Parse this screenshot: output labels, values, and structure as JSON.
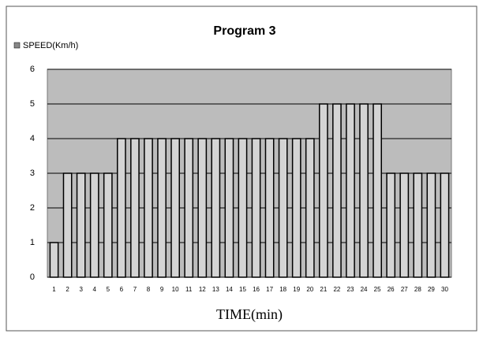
{
  "chart_data": {
    "type": "bar",
    "title": "Program 3",
    "x_label": "TIME(min)",
    "legend": "SPEED(Km/h)",
    "categories": [
      "1",
      "2",
      "3",
      "4",
      "5",
      "6",
      "7",
      "8",
      "9",
      "10",
      "11",
      "12",
      "13",
      "14",
      "15",
      "16",
      "17",
      "18",
      "19",
      "20",
      "21",
      "22",
      "23",
      "24",
      "25",
      "26",
      "27",
      "28",
      "29",
      "30"
    ],
    "values": [
      1,
      3,
      3,
      3,
      3,
      4,
      4,
      4,
      4,
      4,
      4,
      4,
      4,
      4,
      4,
      4,
      4,
      4,
      4,
      4,
      5,
      5,
      5,
      5,
      5,
      3,
      3,
      3,
      3,
      3
    ],
    "color": "#d4d4d4",
    "plot_background": "#bcbcbc",
    "ylim": [
      0,
      6
    ],
    "yticks": [
      0,
      1,
      2,
      3,
      4,
      5,
      6
    ],
    "grid": true
  }
}
